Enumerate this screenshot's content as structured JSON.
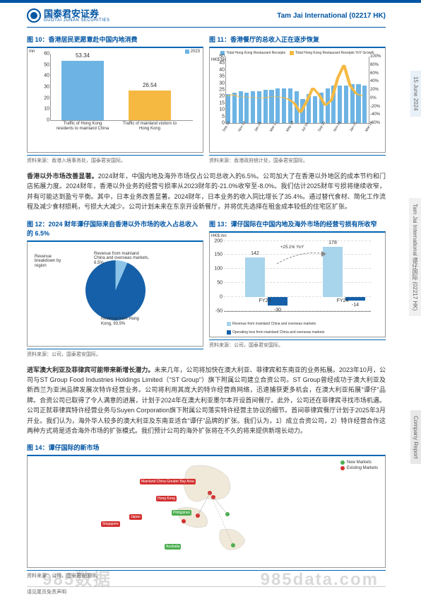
{
  "header": {
    "logo_cn": "国泰君安证券",
    "logo_en": "GUOTAI JUNAN SECURITIES",
    "company": "Tam Jai International (02217 HK)"
  },
  "side": {
    "date": "15 June 2024",
    "ticker": "Tam Jai International 谭仔国际 (02217 HK)",
    "type": "Company Report"
  },
  "fig10": {
    "title": "图 10：香港居民更愿意赴中国内地消费",
    "y_unit": "mn",
    "legend": "2023",
    "bars": [
      {
        "label": "Traffic of Hong Kong residents to mainland China",
        "value": 53.34,
        "color": "#6db4e4"
      },
      {
        "label": "Traffic of mainland visitors to Hong Kong",
        "value": 26.54,
        "color": "#f5b942"
      }
    ],
    "ymax": 60,
    "ytick": 10,
    "source": "资料来源：香港入境事务处，国泰君安国际。"
  },
  "fig11": {
    "title": "图 11：香港餐厅的总收入正在逐步恢复",
    "y_left": "HK$ bn",
    "legend1": "Total Hong Kong Restaurant Receipts",
    "legend2": "Total Hong Kong Restaurant Receipts YoY Growth",
    "legend1_color": "#6db4e4",
    "legend2_color": "#f5b942",
    "x_labels": [
      "Sep 13",
      "Apr-14",
      "Nov-14",
      "Jun-15",
      "Jan-16",
      "Aug-16",
      "Mar-17",
      "Oct-17",
      "May-18",
      "Dec-18",
      "Jul-19",
      "Feb-20",
      "Sep-20",
      "Apr-21",
      "Nov-21",
      "Jun-22",
      "Jan-23",
      "Aug-23",
      "Mar-24"
    ],
    "y_left_max": 50,
    "y_left_tick": 5,
    "y_right_max": 100,
    "y_right_min": -60,
    "y_right_tick": 20,
    "bars_approx": [
      22,
      23,
      24,
      23,
      24,
      24,
      25,
      25,
      26,
      26,
      26,
      24,
      18,
      22,
      20,
      23,
      26,
      28,
      28,
      28,
      29,
      29,
      28
    ],
    "line_approx": [
      5,
      8,
      4,
      3,
      2,
      1,
      0,
      3,
      4,
      2,
      -2,
      -12,
      -35,
      -8,
      25,
      8,
      -18,
      -5,
      48,
      80,
      30,
      10,
      5
    ],
    "source": "资料来源：香港政府统计处，国泰君安国际。"
  },
  "para1": {
    "bold": "香港以外市场改善显著。",
    "text": "2024财年，中国内地及海外市场仅占公司总收入的6.5%。公司加大了在香港以外地区的成本节约和门店拓展力度。2024财年，香港以外业务的经营亏损率从2023财年的-21.0%收窄至-8.0%。我们估计2025财年亏损将继续收窄，并有可能达到盈亏平衡。其中，日本业务改善显著。2024财年，日本业务的收入同比增长了35.4%。通过替代食材、简化工作流程及减少食材损耗，亏损大大减少。公司计划未来在东京开设新餐厅，并将优先选择在租金成本较低的住宅区扩张。"
  },
  "fig12": {
    "title": "图 12：2024 财年谭仔国际来自香港以外市场的收入占总收入的 6.5%",
    "legend_title": "Revenue breakdown by region",
    "slice1": {
      "label": "Revenue from mainland China and overseas markets, 6.5%",
      "value": 6.5,
      "color": "#8bc4e8"
    },
    "slice2": {
      "label": "Revenue from Hong Kong, 93.5%",
      "value": 93.5,
      "color": "#1560a8"
    },
    "source": "资料来源：公司，国泰君安国际。"
  },
  "fig13": {
    "title": "图 13：谭仔国际在中国内地及海外市场的经营亏损有所收窄",
    "y_unit": "HK$ mn",
    "annotation": "+25.1% YoY",
    "series": [
      {
        "x": "FY23",
        "rev": 142,
        "loss": -30
      },
      {
        "x": "FY24",
        "rev": 178,
        "loss": -14
      }
    ],
    "rev_color": "#a8d4ec",
    "loss_color": "#1560a8",
    "legend1": "Revenue from mainland China and overseas markets",
    "legend2": "Operating loss from mainland China and overseas markets",
    "ymax": 200,
    "ymin": -50,
    "ytick": 50,
    "source": "资料来源：公司，国泰君安国际。"
  },
  "para2": {
    "bold": "进军澳大利亚及菲律宾可能带来新增长潜力。",
    "text": "未来几年，公司将加快在澳大利亚、菲律宾和东南亚的业务拓展。2023年10月，公司与ST Group Food Industries Holdings Limited（\"ST Group\"）旗下附属公司建立合资公司。ST Group曾经成功于澳大利亚及新西兰为亚洲品牌发展次特许经营业务。公司将利用其庞大的特许经营商网络，迅速捕获更多机会，在澳大利亚拓展\"谭仔\"品牌。合资公司已取得了令人满意的进展，计划于2024年在澳大利亚墨尔本开设首间餐厅。此外，公司还在菲律宾寻找市场机遇。公司正就菲律宾特许经营业务与Suyen Corporation旗下附属公司落实特许经营主协议的细节。首间菲律宾餐厅计划于2025年3月开业。我们认为，海外华人较多的澳大利亚及东南亚适合\"谭仔\"品牌的扩张。我们认为，1）成立合资公司，2）特许经营合作这两种方式将是适合海外市场的扩张模式。我们预计公司的海外扩张将在不久的将来提供新增长动力。"
  },
  "fig14": {
    "title": "图 14：谭仔国际的新市场",
    "legend_new": "New Markets",
    "legend_existing": "Existing Markets",
    "new_color": "#4caf50",
    "existing_color": "#d32f2f",
    "markets_existing": [
      "Mainland China Greater Bay Area",
      "Hong Kong",
      "Singapore",
      "Japan"
    ],
    "markets_new": [
      "Philippines",
      "Australia"
    ],
    "source": "资料来源：公司，国泰君安国际。"
  },
  "footer": {
    "disclaimer": "请见尾页免责声明"
  },
  "watermark1": "985数据",
  "watermark2": "985data.com"
}
